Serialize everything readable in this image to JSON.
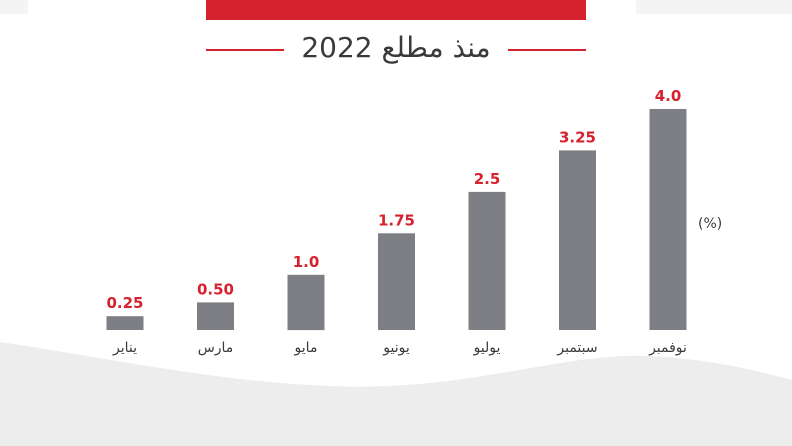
{
  "subtitle": "منذ مطلع 2022",
  "colors": {
    "accent": "#d6212e",
    "bar": "#7e7f84",
    "text": "#3a3a3c",
    "wave": "#ededee"
  },
  "chart_data": {
    "type": "bar",
    "categories": [
      "يناير",
      "مارس",
      "مايو",
      "يونيو",
      "يوليو",
      "سبتمبر",
      "نوفمبر"
    ],
    "values": [
      0.25,
      0.5,
      1.0,
      1.75,
      2.5,
      3.25,
      4.0
    ],
    "value_labels": [
      "0.25",
      "0.50",
      "1.0",
      "1.75",
      "2.5",
      "3.25",
      "4.0"
    ],
    "unit": "(%)",
    "ylim": [
      0,
      4.0
    ],
    "grid": false,
    "legend": "none"
  }
}
